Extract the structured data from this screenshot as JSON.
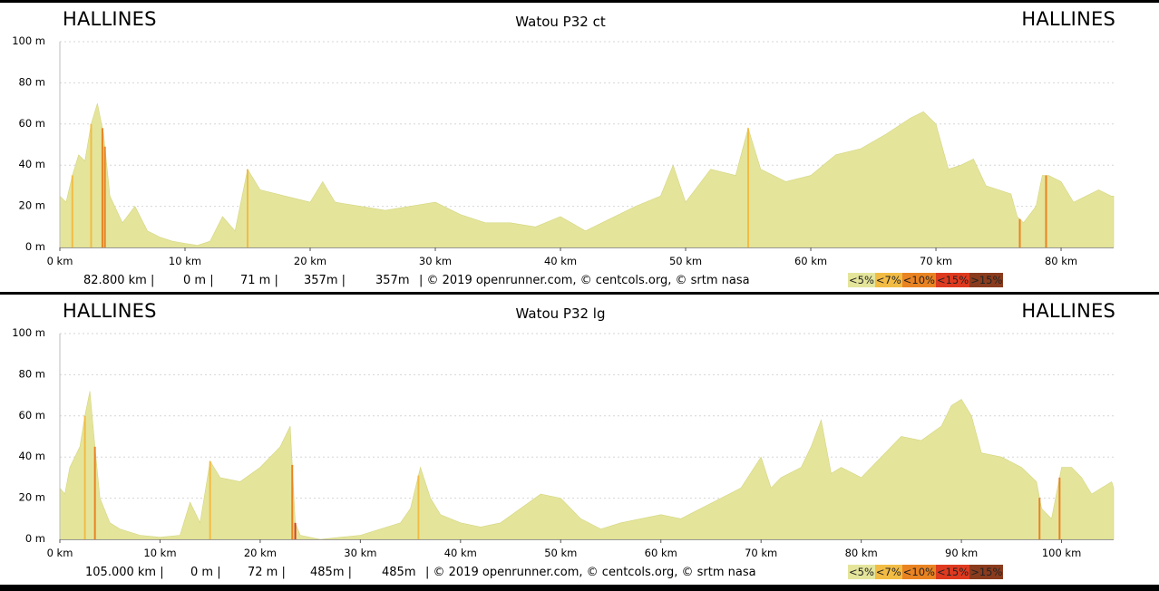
{
  "legend": [
    {
      "label": "<5%",
      "color": "#e4e59b"
    },
    {
      "label": "<7%",
      "color": "#f2bc44"
    },
    {
      "label": "<10%",
      "color": "#e98322"
    },
    {
      "label": "<15%",
      "color": "#de3a20"
    },
    {
      "label": ">15%",
      "color": "#8a3b1d"
    }
  ],
  "profiles": [
    {
      "start_name": "HALLINES",
      "end_name": "HALLINES",
      "stats": {
        "distance": "82.800 km |",
        "min_alt": "0 m |",
        "max_alt": "71 m |",
        "ascent": "357m |",
        "descent": "357m",
        "credits": "| © 2019 openrunner.com, © centcols.org, © srtm nasa"
      }
    },
    {
      "start_name": "HALLINES",
      "end_name": "HALLINES",
      "stats": {
        "distance": "105.000 km |",
        "min_alt": "0 m |",
        "max_alt": "72 m |",
        "ascent": "485m |",
        "descent": "485m",
        "credits": "| © 2019 openrunner.com, © centcols.org, © srtm nasa"
      }
    }
  ],
  "chart_data": [
    {
      "type": "area",
      "title": "Watou P32 ct",
      "xlabel": "",
      "ylabel": "",
      "x_unit": "km",
      "y_unit": "m",
      "xlim": [
        0,
        84.2
      ],
      "ylim": [
        0,
        100
      ],
      "x_ticks": [
        0,
        10,
        20,
        30,
        40,
        50,
        60,
        70,
        80
      ],
      "y_ticks": [
        0,
        20,
        40,
        60,
        80,
        100
      ],
      "grid": true,
      "fill_color": "#e4e59b",
      "series": [
        {
          "x": [
            0,
            0.5,
            1,
            1.5,
            2,
            2.5,
            3,
            3.5,
            4,
            5,
            6,
            7,
            8,
            9,
            10,
            11,
            12,
            13,
            14,
            15,
            16,
            18,
            20,
            21,
            22,
            24,
            26,
            28,
            30,
            32,
            34,
            36,
            38,
            40,
            42,
            44,
            46,
            48,
            49,
            50,
            52,
            54,
            55,
            56,
            58,
            60,
            62,
            64,
            66,
            68,
            69,
            70,
            71,
            72,
            73,
            74,
            75,
            76,
            76.5,
            77,
            78,
            78.5,
            79,
            80,
            81,
            82,
            83,
            84,
            84.2
          ],
          "y": [
            25,
            22,
            35,
            45,
            42,
            60,
            70,
            55,
            25,
            12,
            20,
            8,
            5,
            3,
            2,
            1,
            3,
            15,
            8,
            38,
            28,
            25,
            22,
            32,
            22,
            20,
            18,
            20,
            22,
            16,
            12,
            12,
            10,
            15,
            8,
            14,
            20,
            25,
            40,
            22,
            38,
            35,
            58,
            38,
            32,
            35,
            45,
            48,
            55,
            63,
            66,
            60,
            38,
            40,
            43,
            30,
            28,
            26,
            15,
            12,
            20,
            35,
            35,
            32,
            22,
            25,
            28,
            25,
            25
          ]
        }
      ],
      "steep_marks": [
        {
          "x": 1.0,
          "grade": "<7%"
        },
        {
          "x": 2.5,
          "grade": "<7%"
        },
        {
          "x": 3.4,
          "grade": "<10%"
        },
        {
          "x": 3.6,
          "grade": "<10%"
        },
        {
          "x": 15.0,
          "grade": "<7%"
        },
        {
          "x": 55.0,
          "grade": "<7%"
        },
        {
          "x": 76.7,
          "grade": "<10%"
        },
        {
          "x": 78.8,
          "grade": "<10%"
        }
      ]
    },
    {
      "type": "area",
      "title": "Watou P32 lg",
      "xlabel": "",
      "ylabel": "",
      "x_unit": "km",
      "y_unit": "m",
      "xlim": [
        0,
        105.2
      ],
      "ylim": [
        0,
        100
      ],
      "x_ticks": [
        0,
        10,
        20,
        30,
        40,
        50,
        60,
        70,
        80,
        90,
        100
      ],
      "y_ticks": [
        0,
        20,
        40,
        60,
        80,
        100
      ],
      "grid": true,
      "fill_color": "#e4e59b",
      "series": [
        {
          "x": [
            0,
            0.5,
            1,
            2,
            2.5,
            3,
            3.5,
            4,
            5,
            6,
            8,
            10,
            12,
            13,
            14,
            15,
            16,
            18,
            20,
            22,
            23,
            23.5,
            24,
            26,
            28,
            30,
            32,
            34,
            35,
            36,
            37,
            38,
            40,
            42,
            44,
            46,
            48,
            50,
            52,
            54,
            56,
            58,
            60,
            62,
            64,
            66,
            68,
            70,
            71,
            72,
            74,
            75,
            76,
            77,
            78,
            80,
            82,
            84,
            86,
            88,
            89,
            90,
            91,
            92,
            94,
            96,
            97.5,
            98,
            99,
            100,
            101,
            102,
            103,
            104,
            105,
            105.2
          ],
          "y": [
            25,
            22,
            35,
            45,
            60,
            72,
            45,
            20,
            8,
            5,
            2,
            1,
            2,
            18,
            8,
            38,
            30,
            28,
            35,
            45,
            55,
            8,
            2,
            0,
            1,
            2,
            5,
            8,
            15,
            35,
            20,
            12,
            8,
            6,
            8,
            15,
            22,
            20,
            10,
            5,
            8,
            10,
            12,
            10,
            15,
            20,
            25,
            40,
            25,
            30,
            35,
            45,
            58,
            32,
            35,
            30,
            40,
            50,
            48,
            55,
            65,
            68,
            60,
            42,
            40,
            35,
            28,
            15,
            10,
            35,
            35,
            30,
            22,
            25,
            28,
            25
          ]
        }
      ],
      "steep_marks": [
        {
          "x": 2.5,
          "grade": "<7%"
        },
        {
          "x": 3.5,
          "grade": "<10%"
        },
        {
          "x": 15.0,
          "grade": "<7%"
        },
        {
          "x": 23.2,
          "grade": "<10%"
        },
        {
          "x": 23.5,
          "grade": "<15%"
        },
        {
          "x": 35.8,
          "grade": "<7%"
        },
        {
          "x": 97.8,
          "grade": "<10%"
        },
        {
          "x": 99.8,
          "grade": "<10%"
        }
      ]
    }
  ]
}
